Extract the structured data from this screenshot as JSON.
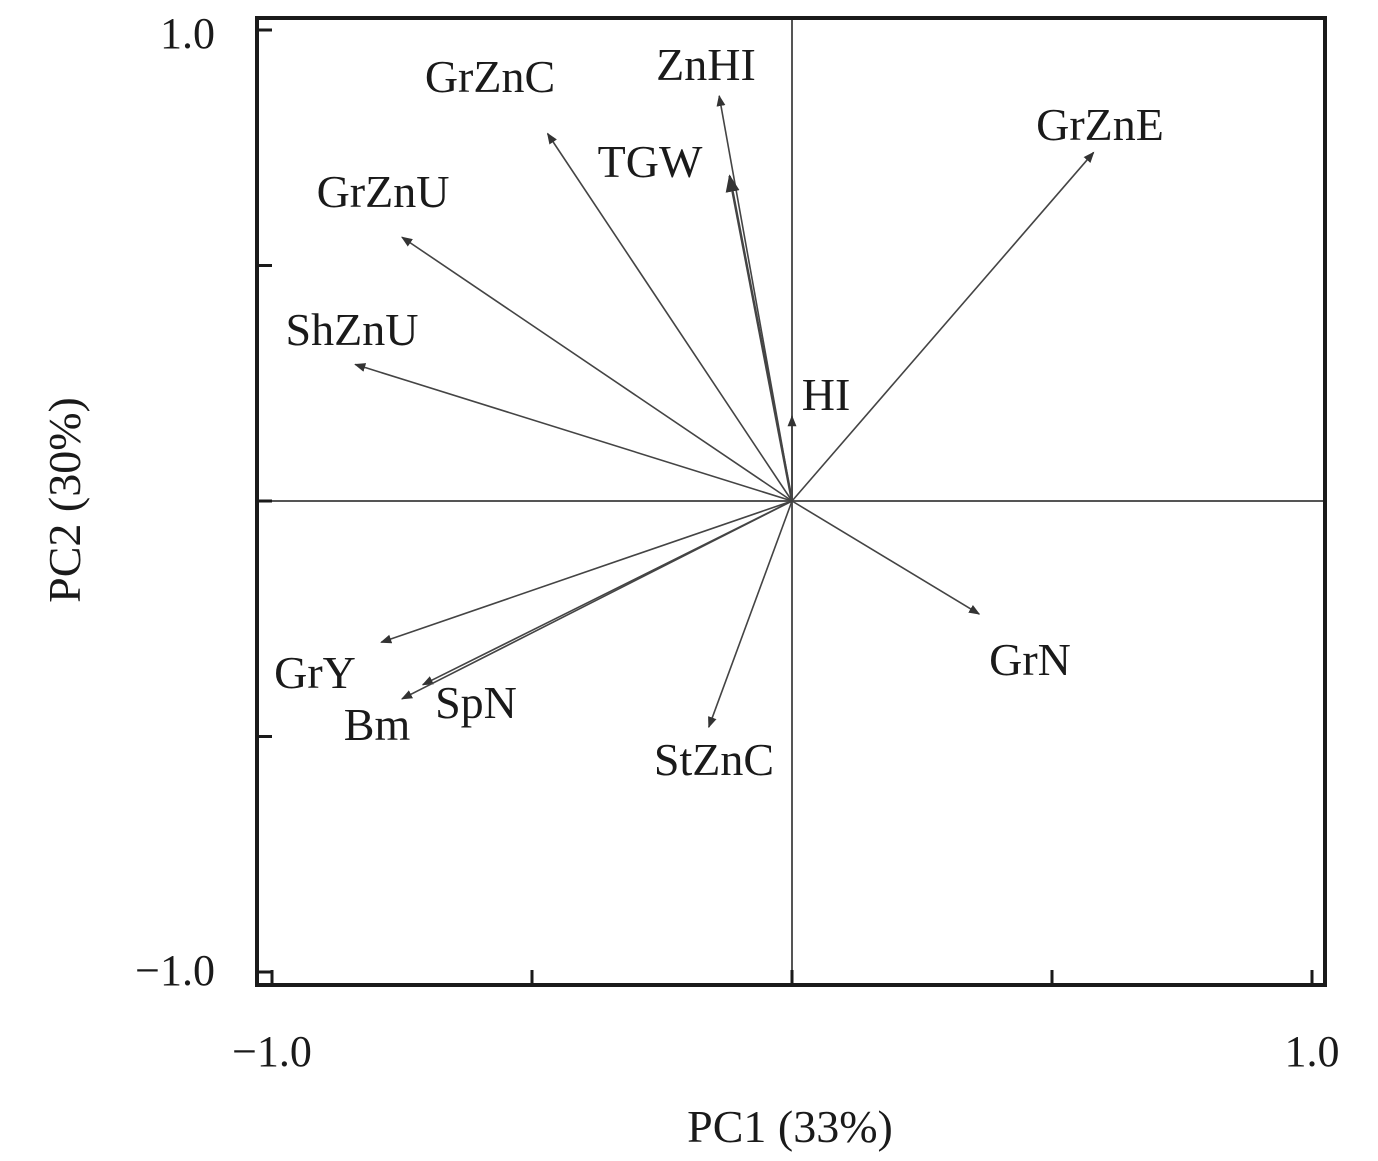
{
  "chart_data": {
    "type": "biplot-loadings",
    "xlabel": "PC1 (33%)",
    "ylabel": "PC2 (30%)",
    "xlim": [
      -1.0,
      1.0
    ],
    "ylim": [
      -1.0,
      1.0
    ],
    "x_tick_labels": [
      "−1.0",
      "1.0"
    ],
    "y_tick_labels": [
      "1.0",
      "−1.0"
    ],
    "grid": false,
    "zero_lines": true,
    "vectors": [
      {
        "label": "GrZnC",
        "x": -0.47,
        "y": 0.78
      },
      {
        "label": "ZnHI",
        "x": -0.14,
        "y": 0.86
      },
      {
        "label": "TGW",
        "x": -0.12,
        "y": 0.69
      },
      {
        "label": "GrZnE",
        "x": 0.58,
        "y": 0.74
      },
      {
        "label": "GrZnU",
        "x": -0.75,
        "y": 0.56
      },
      {
        "label": "ShZnU",
        "x": -0.84,
        "y": 0.29
      },
      {
        "label": "HI",
        "x": 0.0,
        "y": 0.18
      },
      {
        "label": "GrN",
        "x": 0.36,
        "y": -0.24
      },
      {
        "label": "GrY",
        "x": -0.79,
        "y": -0.3
      },
      {
        "label": "SpN",
        "x": -0.71,
        "y": -0.39
      },
      {
        "label": "Bm",
        "x": -0.75,
        "y": -0.42
      },
      {
        "label": "StZnC",
        "x": -0.16,
        "y": -0.48
      }
    ]
  }
}
